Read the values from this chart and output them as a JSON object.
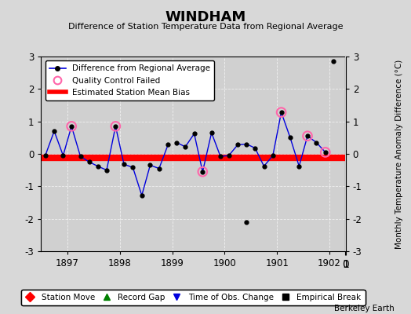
{
  "title": "WINDHAM",
  "subtitle": "Difference of Station Temperature Data from Regional Average",
  "ylabel": "Monthly Temperature Anomaly Difference (°C)",
  "xlabel_bottom": "Berkeley Earth",
  "bias_value": -0.12,
  "ylim": [
    -3,
    3
  ],
  "xlim": [
    1896.5,
    1902.3
  ],
  "xticks": [
    1897,
    1898,
    1899,
    1900,
    1901,
    1902
  ],
  "yticks": [
    -3,
    -2,
    -1,
    0,
    1,
    2,
    3
  ],
  "background_color": "#d8d8d8",
  "plot_bg_color": "#d0d0d0",
  "line_color": "#0000dd",
  "line_width": 1.0,
  "marker_color": "black",
  "marker_size": 3.5,
  "bias_color": "red",
  "bias_linewidth": 6,
  "qc_fail_color": "#ff66aa",
  "qc_fail_size": 70,
  "segments": [
    {
      "x": [
        1896.58,
        1896.75,
        1896.92,
        1897.08,
        1897.25,
        1897.42,
        1897.58,
        1897.75,
        1897.92,
        1898.08,
        1898.25,
        1898.42,
        1898.58,
        1898.75,
        1898.92
      ],
      "y": [
        -0.05,
        0.7,
        -0.05,
        0.85,
        -0.08,
        -0.25,
        -0.38,
        -0.5,
        0.85,
        -0.32,
        -0.42,
        -1.28,
        -0.35,
        -0.45,
        0.28
      ]
    },
    {
      "x": [
        1899.08,
        1899.25,
        1899.42,
        1899.58,
        1899.75,
        1899.92,
        1900.08,
        1900.25,
        1900.42,
        1900.58,
        1900.75,
        1900.92,
        1901.08,
        1901.25,
        1901.42,
        1901.58,
        1901.75,
        1901.92
      ],
      "y": [
        0.35,
        0.22,
        0.62,
        -0.55,
        0.65,
        -0.08,
        -0.05,
        0.28,
        0.3,
        0.18,
        -0.38,
        -0.05,
        1.28,
        0.5,
        -0.38,
        0.55,
        0.35,
        0.05
      ]
    },
    {
      "x": [
        1902.08
      ],
      "y": [
        2.85
      ]
    }
  ],
  "isolated_point_x": [
    1900.42
  ],
  "isolated_point_y": [
    -2.1
  ],
  "qc_fail_points": [
    [
      1897.08,
      0.85
    ],
    [
      1897.92,
      0.85
    ],
    [
      1899.58,
      -0.55
    ],
    [
      1901.08,
      1.28
    ],
    [
      1901.58,
      0.55
    ],
    [
      1901.92,
      0.05
    ]
  ],
  "legend1_items": [
    {
      "label": "Difference from Regional Average",
      "color": "#0000dd",
      "type": "line"
    },
    {
      "label": "Quality Control Failed",
      "color": "#ff66aa",
      "type": "circle"
    },
    {
      "label": "Estimated Station Mean Bias",
      "color": "red",
      "type": "line"
    }
  ],
  "legend2_items": [
    {
      "label": "Station Move",
      "color": "red",
      "marker": "D"
    },
    {
      "label": "Record Gap",
      "color": "green",
      "marker": "^"
    },
    {
      "label": "Time of Obs. Change",
      "color": "#0000dd",
      "marker": "v"
    },
    {
      "label": "Empirical Break",
      "color": "black",
      "marker": "s"
    }
  ]
}
